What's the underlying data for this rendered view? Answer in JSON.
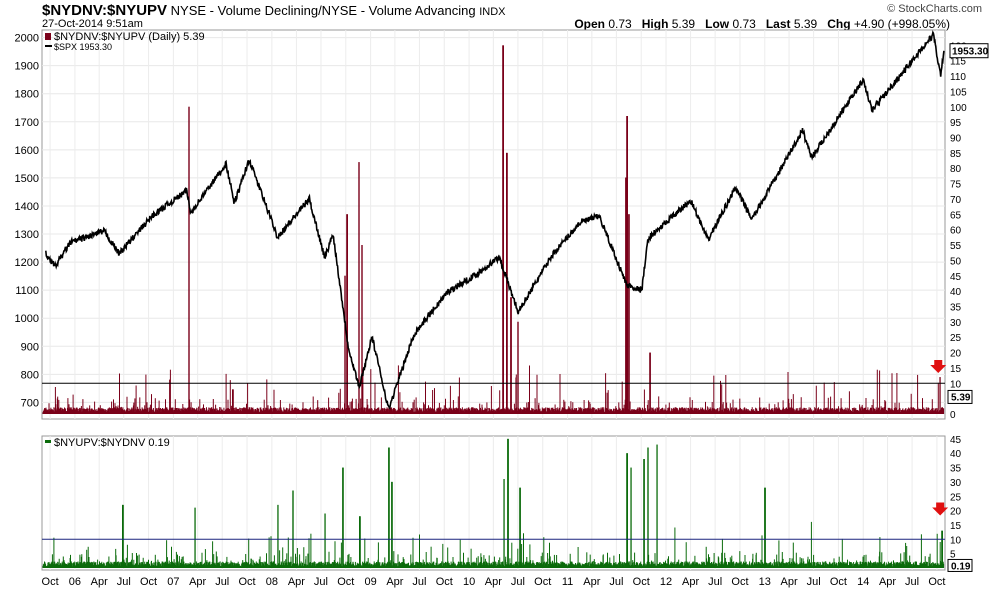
{
  "header": {
    "symbol": "$NYDNV:$NYUPV",
    "description": "NYSE - Volume Declining/NYSE - Volume Advancing",
    "exchange": "INDX",
    "date": "27-Oct-2014 9:51am",
    "watermark": "© StockCharts.com",
    "open_label": "Open",
    "open": "0.73",
    "high_label": "High",
    "high": "5.39",
    "low_label": "Low",
    "low": "0.73",
    "last_label": "Last",
    "last": "5.39",
    "chg_label": "Chg",
    "chg": "+4.90 (+998.05%)"
  },
  "colors": {
    "ratio": "#7a0019",
    "inverse": "#0b6b0b",
    "spx": "#000000",
    "hline_top": "#000000",
    "hline_bottom": "#1a237e",
    "arrow": "#e01010"
  },
  "chart_data": [
    {
      "type": "bar",
      "legend": [
        "$NYDNV:$NYUPV (Daily) 5.39",
        "$SPX 1953.30"
      ],
      "series": [
        {
          "name": "$NYDNV:$NYUPV (Daily)",
          "last": 5.39,
          "spikes": [
            {
              "date": "2007-02-27",
              "value": 100
            },
            {
              "date": "2007-08-09",
              "value": 8
            },
            {
              "date": "2008-10-06",
              "value": 65
            },
            {
              "date": "2008-11-20",
              "value": 82
            },
            {
              "date": "2008-12-01",
              "value": 55
            },
            {
              "date": "2008-09-29",
              "value": 45
            },
            {
              "date": "2010-05-20",
              "value": 85
            },
            {
              "date": "2010-06-04",
              "value": 38
            },
            {
              "date": "2010-05-06",
              "value": 120
            },
            {
              "date": "2010-07-01",
              "value": 30
            },
            {
              "date": "2011-08-08",
              "value": 97
            },
            {
              "date": "2011-08-04",
              "value": 77
            },
            {
              "date": "2011-08-18",
              "value": 65
            },
            {
              "date": "2011-11-01",
              "value": 20
            },
            {
              "date": "2014-10-13",
              "value": 12
            }
          ]
        },
        {
          "name": "$SPX",
          "last": 1953.3,
          "points": [
            {
              "date": "2005-09-15",
              "value": 1230
            },
            {
              "date": "2005-10-20",
              "value": 1185
            },
            {
              "date": "2005-12-15",
              "value": 1270
            },
            {
              "date": "2006-04-20",
              "value": 1310
            },
            {
              "date": "2006-06-14",
              "value": 1230
            },
            {
              "date": "2006-10-15",
              "value": 1365
            },
            {
              "date": "2007-02-20",
              "value": 1455
            },
            {
              "date": "2007-03-05",
              "value": 1375
            },
            {
              "date": "2007-07-15",
              "value": 1550
            },
            {
              "date": "2007-08-15",
              "value": 1410
            },
            {
              "date": "2007-10-09",
              "value": 1565
            },
            {
              "date": "2008-01-22",
              "value": 1290
            },
            {
              "date": "2008-05-19",
              "value": 1425
            },
            {
              "date": "2008-07-15",
              "value": 1215
            },
            {
              "date": "2008-08-15",
              "value": 1300
            },
            {
              "date": "2008-10-10",
              "value": 900
            },
            {
              "date": "2008-11-20",
              "value": 752
            },
            {
              "date": "2009-01-06",
              "value": 935
            },
            {
              "date": "2009-03-09",
              "value": 676
            },
            {
              "date": "2009-06-12",
              "value": 945
            },
            {
              "date": "2009-10-15",
              "value": 1095
            },
            {
              "date": "2010-01-19",
              "value": 1150
            },
            {
              "date": "2010-04-23",
              "value": 1217
            },
            {
              "date": "2010-07-02",
              "value": 1022
            },
            {
              "date": "2010-11-05",
              "value": 1225
            },
            {
              "date": "2011-02-18",
              "value": 1343
            },
            {
              "date": "2011-04-29",
              "value": 1363
            },
            {
              "date": "2011-08-08",
              "value": 1119
            },
            {
              "date": "2011-10-03",
              "value": 1099
            },
            {
              "date": "2011-10-27",
              "value": 1285
            },
            {
              "date": "2012-04-02",
              "value": 1419
            },
            {
              "date": "2012-06-04",
              "value": 1278
            },
            {
              "date": "2012-09-14",
              "value": 1465
            },
            {
              "date": "2012-11-15",
              "value": 1353
            },
            {
              "date": "2013-05-21",
              "value": 1669
            },
            {
              "date": "2013-06-24",
              "value": 1573
            },
            {
              "date": "2013-12-31",
              "value": 1848
            },
            {
              "date": "2014-02-03",
              "value": 1741
            },
            {
              "date": "2014-09-18",
              "value": 2011
            },
            {
              "date": "2014-10-15",
              "value": 1862
            },
            {
              "date": "2014-10-27",
              "value": 1953
            }
          ]
        }
      ],
      "y_left_ticks": [
        700,
        800,
        900,
        1000,
        1100,
        1200,
        1300,
        1400,
        1500,
        1600,
        1700,
        1800,
        1900,
        2000
      ],
      "y_right_ticks": [
        0,
        5,
        10,
        15,
        20,
        25,
        30,
        35,
        40,
        45,
        50,
        55,
        60,
        65,
        70,
        75,
        80,
        85,
        90,
        95,
        100,
        105,
        110,
        115,
        120
      ],
      "right_label": "5.39",
      "right_label2": "1953.30",
      "hline": 10,
      "annotation": "red down arrow at Oct 2014"
    },
    {
      "type": "bar",
      "legend": [
        "$NYUPV:$NYDNV 0.19"
      ],
      "series": [
        {
          "name": "$NYUPV:$NYDNV",
          "last": 0.19,
          "spikes": [
            {
              "date": "2006-06-27",
              "value": 22
            },
            {
              "date": "2007-03-21",
              "value": 21
            },
            {
              "date": "2008-01-24",
              "value": 22
            },
            {
              "date": "2008-03-18",
              "value": 27
            },
            {
              "date": "2008-07-16",
              "value": 19
            },
            {
              "date": "2008-09-19",
              "value": 35
            },
            {
              "date": "2008-11-24",
              "value": 18
            },
            {
              "date": "2009-03-10",
              "value": 42
            },
            {
              "date": "2009-03-23",
              "value": 30
            },
            {
              "date": "2010-05-10",
              "value": 31
            },
            {
              "date": "2010-05-27",
              "value": 45
            },
            {
              "date": "2010-07-07",
              "value": 28
            },
            {
              "date": "2011-08-09",
              "value": 40
            },
            {
              "date": "2011-08-23",
              "value": 35
            },
            {
              "date": "2011-10-10",
              "value": 38
            },
            {
              "date": "2011-10-27",
              "value": 42
            },
            {
              "date": "2011-11-30",
              "value": 43
            },
            {
              "date": "2013-01-02",
              "value": 28
            },
            {
              "date": "2014-10-20",
              "value": 13
            }
          ]
        }
      ],
      "y_right_ticks": [
        0,
        5,
        10,
        15,
        20,
        25,
        30,
        35,
        40,
        45
      ],
      "right_label": "0.19",
      "hline": 10,
      "annotation": "red down arrow at Oct 2014"
    }
  ],
  "x_axis_labels": [
    "Oct",
    "06",
    "Apr",
    "Jul",
    "Oct",
    "07",
    "Apr",
    "Jul",
    "Oct",
    "08",
    "Apr",
    "Jul",
    "Oct",
    "09",
    "Apr",
    "Jul",
    "Oct",
    "10",
    "Apr",
    "Jul",
    "Oct",
    "11",
    "Apr",
    "Jul",
    "Oct",
    "12",
    "Apr",
    "Jul",
    "Oct",
    "13",
    "Apr",
    "Jul",
    "Oct",
    "14",
    "Apr",
    "Jul",
    "Oct"
  ]
}
